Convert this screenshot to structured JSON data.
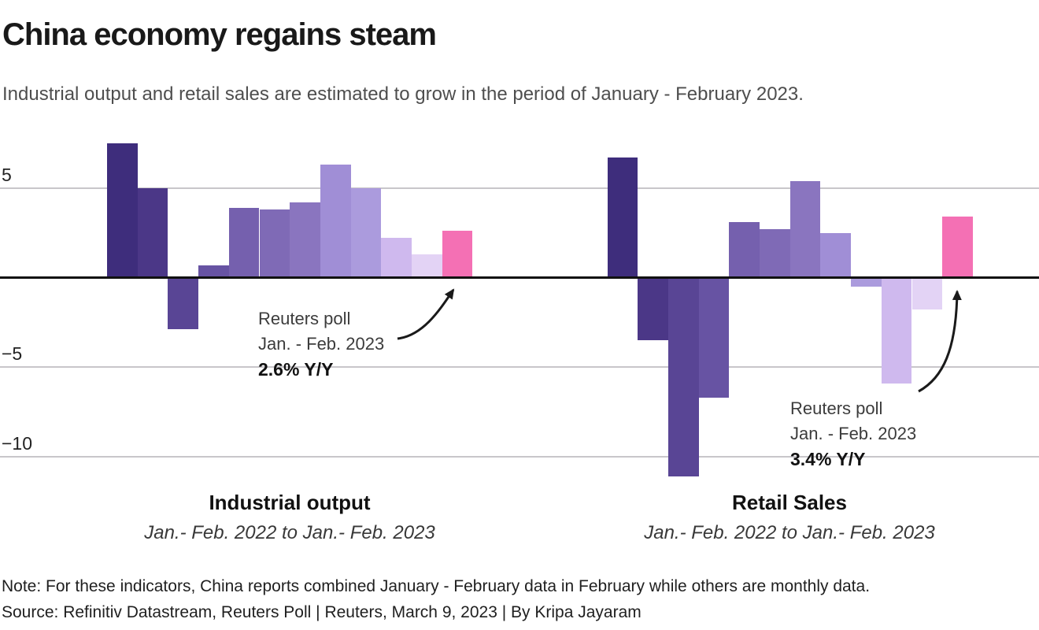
{
  "header": {
    "title": "China economy regains steam",
    "subtitle": "Industrial output and retail sales are estimated to grow in the period of January - February 2023."
  },
  "y_axis": {
    "ticks": [
      {
        "label": "5",
        "value": 5
      },
      {
        "label": "−5",
        "value": -5
      },
      {
        "label": "−10",
        "value": -10
      }
    ],
    "zero_value": 0
  },
  "chart_data": [
    {
      "type": "bar",
      "title": "Industrial output",
      "subtitle": "Jan.- Feb. 2022 to Jan.- Feb. 2023",
      "values": [
        7.5,
        5.0,
        -2.9,
        0.7,
        3.9,
        3.8,
        4.2,
        6.3,
        5.0,
        2.2,
        1.3,
        2.6
      ],
      "ylim": [
        -12.5,
        8.5
      ],
      "grid": true,
      "legend_position": "none",
      "annotation": {
        "line1": "Reuters poll",
        "line2": "Jan. - Feb. 2023",
        "line3": "2.6% Y/Y"
      }
    },
    {
      "type": "bar",
      "title": "Retail Sales",
      "subtitle": "Jan.- Feb. 2022 to Jan.- Feb. 2023",
      "values": [
        6.7,
        -3.5,
        -11.1,
        -6.7,
        3.1,
        2.7,
        5.4,
        2.5,
        -0.5,
        -5.9,
        -1.8,
        3.4
      ],
      "ylim": [
        -12.5,
        8.5
      ],
      "grid": true,
      "legend_position": "none",
      "annotation": {
        "line1": "Reuters poll",
        "line2": "Jan. - Feb. 2023",
        "line3": "3.4% Y/Y"
      }
    }
  ],
  "colors": {
    "bar_sequence": [
      "#3e2d7c",
      "#4b3787",
      "#594595",
      "#6753a3",
      "#7560ae",
      "#7f6ab6",
      "#8a75bf",
      "#a08ed6",
      "#ab9bdd",
      "#cfb9ee",
      "#e3d3f5",
      "#f470b4"
    ],
    "poll_bar": "#f470b4",
    "gridline": "#c8c6ca",
    "zero_line": "#111111",
    "arrow": "#1a1a1a"
  },
  "footer": {
    "note": "Note: For these indicators, China reports combined January - February data in February while others are monthly data.",
    "source": "Source: Refinitiv Datastream, Reuters Poll | Reuters, March 9, 2023 | By Kripa Jayaram"
  }
}
